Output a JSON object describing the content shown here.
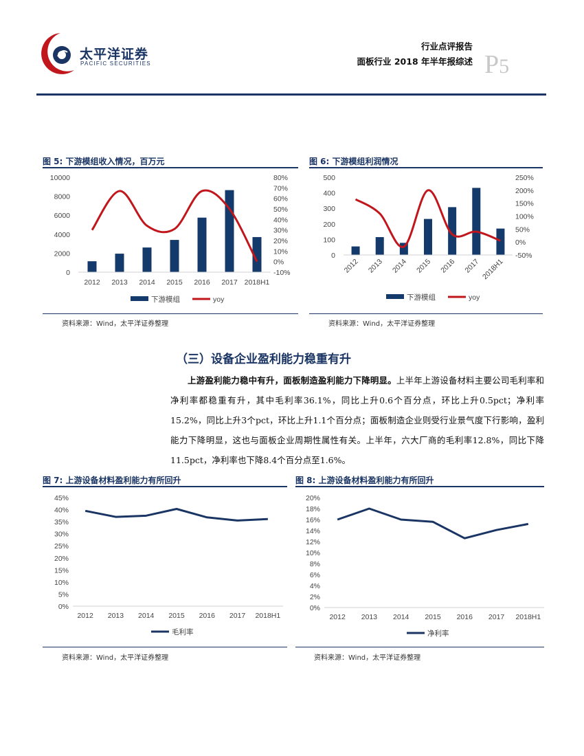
{
  "header": {
    "logo_cn": "太平洋证券",
    "logo_en": "PACIFIC SECURITIES",
    "report_type": "行业点评报告",
    "report_title": "面板行业 2018 年半年报综述",
    "page_prefix": "P",
    "page_number": "5"
  },
  "colors": {
    "navy": "#1a3564",
    "red": "#c0161c",
    "bar": "#143a6b"
  },
  "figures": {
    "fig5": {
      "title": "图 5: 下游模组收入情况，百万元",
      "source": "资料来源：Wind，太平洋证券整理"
    },
    "fig6": {
      "title": "图 6: 下游模组利润情况",
      "source": "资料来源：Wind，太平洋证券整理"
    },
    "fig7": {
      "title": "图 7: 上游设备材料盈利能力有所回升",
      "source": "资料来源：Wind，太平洋证券整理"
    },
    "fig8": {
      "title": "图 8: 上游设备材料盈利能力有所回升",
      "source": "资料来源：Wind，太平洋证券整理"
    }
  },
  "section": {
    "title": "（三）设备企业盈利能力稳重有升",
    "lead_bold": "上游盈利能力稳中有升，面板制造盈利能力下降明显。",
    "body": "上半年上游设备材料主要公司毛利率和净利率都稳重有升，其中毛利率36.1%，同比上升0.6个百分点，环比上升0.5pct；净利率15.2%，同比上升3个pct，环比上升1.1个百分点；面板制造企业则受行业景气度下行影响，盈利能力下降明显，这也与面板企业周期性属性有关。上半年，六大厂商的毛利率12.8%，同比下降11.5pct，净利率也下降8.4个百分点至1.6%。"
  },
  "chart_data": [
    {
      "id": "fig5",
      "type": "bar+line",
      "categories": [
        "2012",
        "2013",
        "2014",
        "2015",
        "2016",
        "2017",
        "2018H1"
      ],
      "series": [
        {
          "name": "下游模组",
          "type": "bar",
          "axis": "left",
          "values": [
            1150,
            1950,
            2600,
            3400,
            5750,
            8650,
            3700
          ]
        },
        {
          "name": "yoy",
          "type": "line",
          "axis": "right",
          "values": [
            0.3,
            0.67,
            0.34,
            0.31,
            0.67,
            0.5,
            0.0
          ]
        }
      ],
      "left_axis": {
        "min": 0,
        "max": 10000,
        "ticks": [
          "0",
          "2000",
          "4000",
          "6000",
          "8000",
          "10000"
        ]
      },
      "right_axis": {
        "min": -0.1,
        "max": 0.8,
        "ticks": [
          "-10%",
          "0%",
          "10%",
          "20%",
          "30%",
          "40%",
          "50%",
          "60%",
          "70%",
          "80%"
        ]
      }
    },
    {
      "id": "fig6",
      "type": "bar+line",
      "categories": [
        "2012",
        "2013",
        "2014",
        "2015",
        "2016",
        "2017",
        "2018H1"
      ],
      "series": [
        {
          "name": "下游模组",
          "type": "bar",
          "axis": "left",
          "values": [
            55,
            115,
            78,
            232,
            308,
            432,
            170
          ]
        },
        {
          "name": "yoy",
          "type": "line",
          "axis": "right",
          "values": [
            1.65,
            1.1,
            -0.18,
            2.0,
            0.3,
            0.4,
            0.05
          ]
        }
      ],
      "left_axis": {
        "min": 0,
        "max": 500,
        "ticks": [
          "0",
          "100",
          "200",
          "300",
          "400",
          "500"
        ]
      },
      "right_axis": {
        "min": -0.5,
        "max": 2.5,
        "ticks": [
          "-50%",
          "0%",
          "50%",
          "100%",
          "150%",
          "200%",
          "250%"
        ]
      }
    },
    {
      "id": "fig7",
      "type": "line",
      "categories": [
        "2012",
        "2013",
        "2014",
        "2015",
        "2016",
        "2017",
        "2018H1"
      ],
      "series": [
        {
          "name": "毛利率",
          "values": [
            0.395,
            0.37,
            0.375,
            0.403,
            0.368,
            0.355,
            0.361
          ]
        }
      ],
      "left_axis": {
        "min": 0,
        "max": 0.45,
        "ticks": [
          "0%",
          "5%",
          "10%",
          "15%",
          "20%",
          "25%",
          "30%",
          "35%",
          "40%",
          "45%"
        ]
      }
    },
    {
      "id": "fig8",
      "type": "line",
      "categories": [
        "2012",
        "2013",
        "2014",
        "2015",
        "2016",
        "2017",
        "2018H1"
      ],
      "series": [
        {
          "name": "净利率",
          "values": [
            0.16,
            0.18,
            0.16,
            0.156,
            0.126,
            0.141,
            0.152
          ]
        }
      ],
      "left_axis": {
        "min": 0,
        "max": 0.2,
        "ticks": [
          "0%",
          "2%",
          "4%",
          "6%",
          "8%",
          "10%",
          "12%",
          "14%",
          "16%",
          "18%",
          "20%"
        ]
      }
    }
  ]
}
